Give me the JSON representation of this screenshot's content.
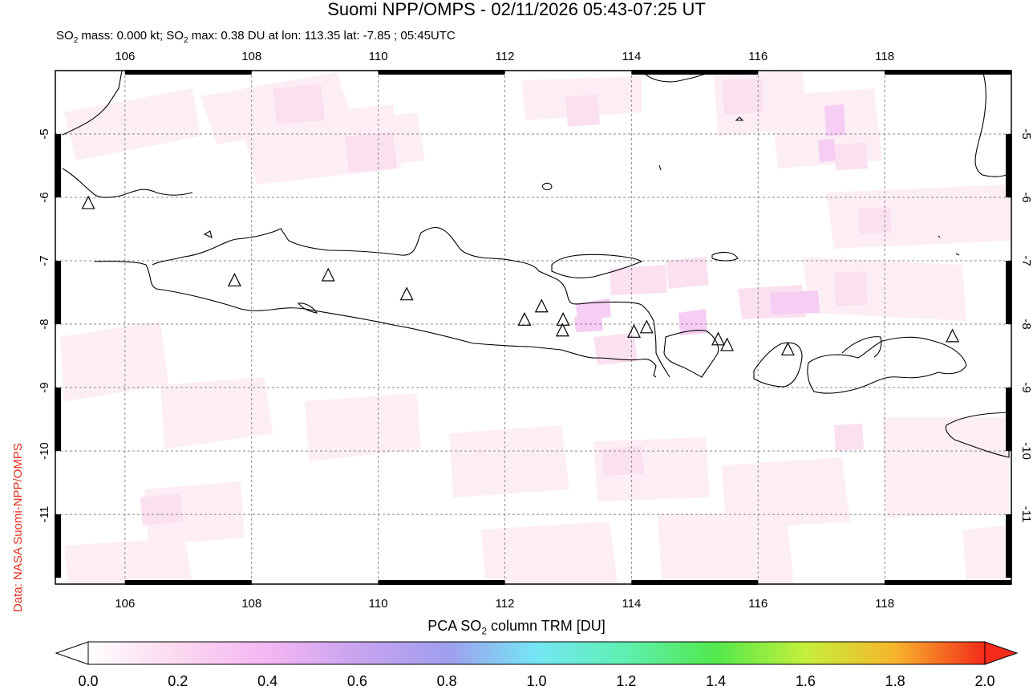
{
  "title": "Suomi NPP/OMPS - 02/11/2026 05:43-07:25 UT",
  "subtitle": {
    "prefix": "SO",
    "sub": "2",
    "mid": " mass: 0.000 kt; SO",
    "sub2": "2",
    "rest": " max: 0.38 DU at lon: 113.35 lat: -7.85 ; 05:45UTC"
  },
  "credit": "Data: NASA Suomi-NPP/OMPS",
  "colorbar": {
    "label_pre": "PCA SO",
    "label_sub": "2",
    "label_post": " column TRM [DU]",
    "ticks": [
      "0.0",
      "0.2",
      "0.4",
      "0.6",
      "0.8",
      "1.0",
      "1.2",
      "1.4",
      "1.6",
      "1.8",
      "2.0"
    ]
  },
  "map": {
    "lon_range": [
      104.9,
      120.0
    ],
    "lat_range": [
      -12.1,
      -4.0
    ],
    "lon_ticks": [
      "106",
      "108",
      "110",
      "112",
      "114",
      "116",
      "118"
    ],
    "lat_ticks": [
      "-5",
      "-6",
      "-7",
      "-8",
      "-9",
      "-10",
      "-11"
    ],
    "volcanoes": [
      [
        105.42,
        -6.1
      ],
      [
        107.73,
        -7.32
      ],
      [
        109.21,
        -7.24
      ],
      [
        110.45,
        -7.54
      ],
      [
        112.31,
        -7.94
      ],
      [
        112.58,
        -7.73
      ],
      [
        112.92,
        -7.94
      ],
      [
        112.91,
        -8.11
      ],
      [
        114.04,
        -8.13
      ],
      [
        114.24,
        -8.06
      ],
      [
        115.37,
        -8.25
      ],
      [
        115.51,
        -8.34
      ],
      [
        116.47,
        -8.41
      ],
      [
        119.07,
        -8.2
      ]
    ],
    "colors": {
      "land_outline": "#000000",
      "grid": "#888888",
      "so2_low": "#fde6f2",
      "so2_mid": "#f6c8f0"
    }
  }
}
